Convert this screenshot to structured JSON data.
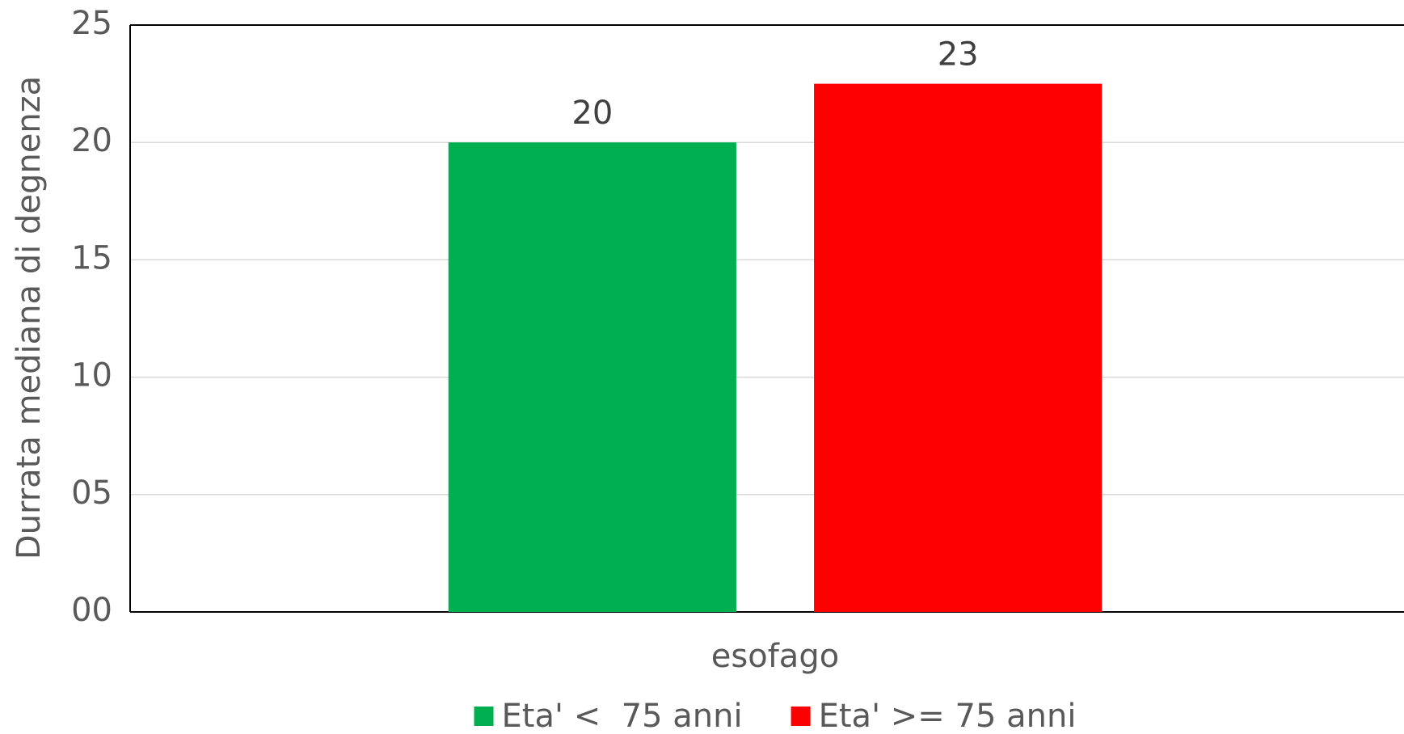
{
  "chart_data": {
    "type": "bar",
    "categories": [
      "esofago"
    ],
    "y_label": "Durrata mediana di degnenza",
    "series": [
      {
        "name": "Eta' <  75 anni",
        "color": "#00b050",
        "values": [
          20
        ]
      },
      {
        "name": "Eta' >= 75 anni",
        "color": "#ff0000",
        "values": [
          22.5
        ],
        "value_labels": [
          "23"
        ]
      }
    ],
    "ylim": [
      0,
      25
    ],
    "yticks": [
      {
        "value": 0,
        "label": "00"
      },
      {
        "value": 5,
        "label": "05"
      },
      10,
      15,
      20,
      25
    ],
    "grid": true,
    "legend": "bottom"
  }
}
